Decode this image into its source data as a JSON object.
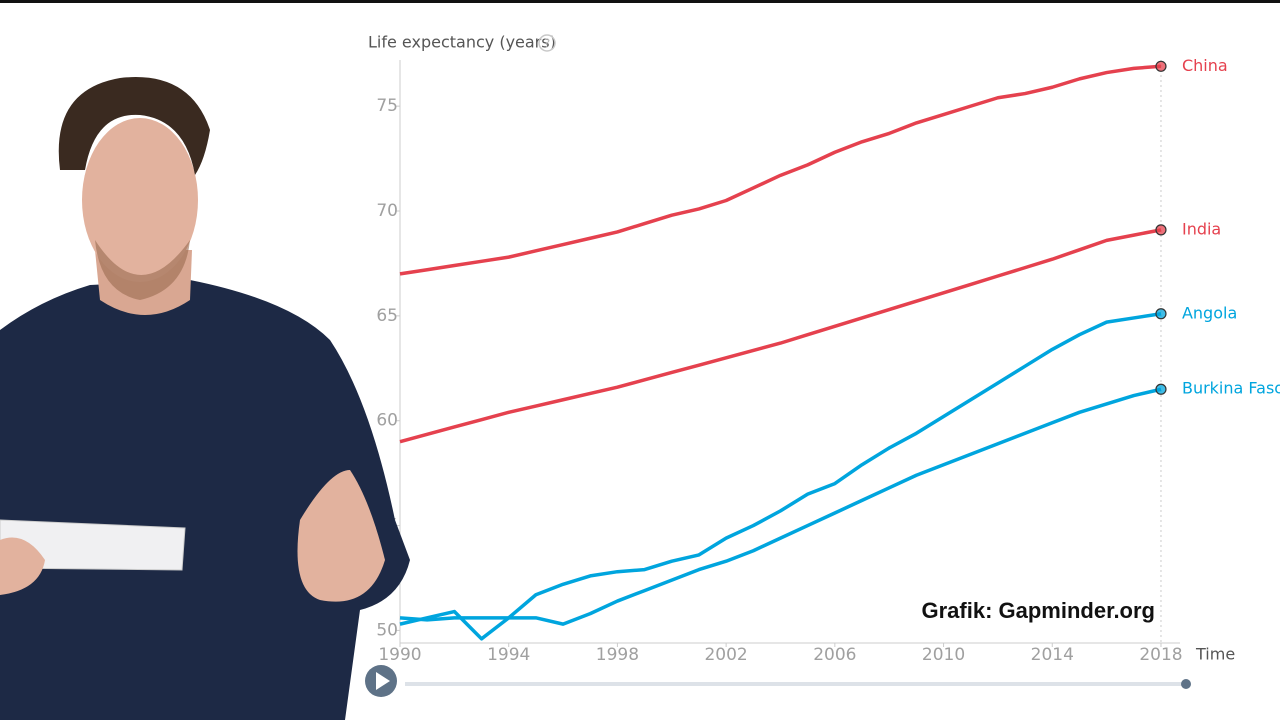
{
  "chart_data": {
    "type": "line",
    "y_label": "Life expectancy (years)",
    "help_icon": "?",
    "x_label": "Time",
    "caption": "Grafik: Gapminder.org",
    "x": [
      1990,
      1991,
      1992,
      1993,
      1994,
      1995,
      1996,
      1997,
      1998,
      1999,
      2000,
      2001,
      2002,
      2003,
      2004,
      2005,
      2006,
      2007,
      2008,
      2009,
      2010,
      2011,
      2012,
      2013,
      2014,
      2015,
      2016,
      2017,
      2018
    ],
    "xlim": [
      1990,
      2018.7
    ],
    "xticks": [
      1990,
      1994,
      1998,
      2002,
      2006,
      2010,
      2014,
      2018
    ],
    "ylim": [
      49.4,
      77.2
    ],
    "yticks": [
      50,
      55,
      60,
      65,
      70,
      75
    ],
    "series": [
      {
        "name": "China",
        "color": "#e5414e",
        "values": [
          67.0,
          67.2,
          67.4,
          67.6,
          67.8,
          68.1,
          68.4,
          68.7,
          69.0,
          69.4,
          69.8,
          70.1,
          70.5,
          71.1,
          71.7,
          72.2,
          72.8,
          73.3,
          73.7,
          74.2,
          74.6,
          75.0,
          75.4,
          75.6,
          75.9,
          76.3,
          76.6,
          76.8,
          76.9
        ]
      },
      {
        "name": "India",
        "color": "#e5414e",
        "values": [
          59.0,
          59.35,
          59.7,
          60.05,
          60.4,
          60.7,
          61.0,
          61.3,
          61.6,
          61.95,
          62.3,
          62.65,
          63.0,
          63.35,
          63.7,
          64.1,
          64.5,
          64.9,
          65.3,
          65.7,
          66.1,
          66.5,
          66.9,
          67.3,
          67.7,
          68.15,
          68.6,
          68.85,
          69.1
        ]
      },
      {
        "name": "Angola",
        "color": "#00a5de",
        "values": [
          50.3,
          50.6,
          50.9,
          49.6,
          50.6,
          51.7,
          52.2,
          52.6,
          52.8,
          52.9,
          53.3,
          53.6,
          54.4,
          55.0,
          55.7,
          56.5,
          57.0,
          57.9,
          58.7,
          59.4,
          60.2,
          61.0,
          61.8,
          62.6,
          63.4,
          64.1,
          64.7,
          64.9,
          65.1
        ]
      },
      {
        "name": "Burkina Faso",
        "color": "#00a5de",
        "values": [
          50.6,
          50.5,
          50.6,
          50.6,
          50.6,
          50.6,
          50.3,
          50.8,
          51.4,
          51.9,
          52.4,
          52.9,
          53.3,
          53.8,
          54.4,
          55.0,
          55.6,
          56.2,
          56.8,
          57.4,
          57.9,
          58.4,
          58.9,
          59.4,
          59.9,
          60.4,
          60.8,
          61.2,
          61.5
        ]
      }
    ]
  }
}
